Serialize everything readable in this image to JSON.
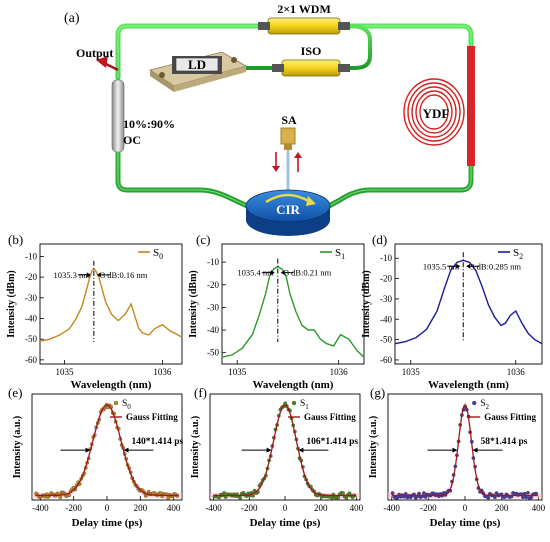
{
  "panel_a": {
    "label": "(a)",
    "wdm": "2×1 WDM",
    "output": "Output",
    "ld": "LD",
    "iso": "ISO",
    "oc_ratio": "10%:90%",
    "oc": "OC",
    "ydf": "YDF",
    "sa": "SA",
    "cir": "CIR"
  },
  "chart_data": [
    {
      "panel": "(b)",
      "type": "line",
      "color": "#c8861c",
      "legend_prefix": "S",
      "legend_sub": "0",
      "ylabel": "Intensity (dBm)",
      "xlabel": "Wavelength (nm)",
      "xlim": [
        1034.75,
        1036.2
      ],
      "ylim": [
        -62,
        -4
      ],
      "xticks": [
        "1035",
        "1036"
      ],
      "yticks": [
        "-10",
        "-20",
        "-30",
        "-40",
        "-50",
        "-60"
      ],
      "peak_label": "1035.3 nm",
      "bw_label": "3 dB:0.16 nm",
      "peak_x": 1035.3,
      "x": [
        1034.75,
        1034.85,
        1034.95,
        1035.05,
        1035.12,
        1035.18,
        1035.22,
        1035.26,
        1035.28,
        1035.3,
        1035.32,
        1035.35,
        1035.38,
        1035.42,
        1035.48,
        1035.55,
        1035.62,
        1035.68,
        1035.72,
        1035.76,
        1035.8,
        1035.86,
        1035.92,
        1036.0,
        1036.08,
        1036.2
      ],
      "y": [
        -51,
        -50,
        -48,
        -45,
        -40,
        -34,
        -27,
        -20,
        -17,
        -16,
        -17,
        -20,
        -25,
        -32,
        -38,
        -41,
        -38,
        -33,
        -39,
        -45,
        -47,
        -48,
        -45,
        -43,
        -46,
        -49
      ]
    },
    {
      "panel": "(c)",
      "type": "line",
      "color": "#2b9a2b",
      "legend_prefix": "S",
      "legend_sub": "1",
      "ylabel": "Intensity (dBm)",
      "xlabel": "Wavelength (nm)",
      "xlim": [
        1034.85,
        1036.25
      ],
      "ylim": [
        -55,
        -2
      ],
      "xticks": [
        "1035",
        "1036"
      ],
      "yticks": [
        "-10",
        "-20",
        "-30",
        "-40",
        "-50"
      ],
      "peak_label": "1035.4 nm",
      "bw_label": "3 dB:0.21 nm",
      "peak_x": 1035.4,
      "x": [
        1034.85,
        1034.95,
        1035.05,
        1035.15,
        1035.22,
        1035.28,
        1035.32,
        1035.36,
        1035.4,
        1035.44,
        1035.48,
        1035.52,
        1035.58,
        1035.64,
        1035.7,
        1035.76,
        1035.82,
        1035.88,
        1035.95,
        1036.02,
        1036.1,
        1036.18,
        1036.25
      ],
      "y": [
        -52,
        -51,
        -48,
        -42,
        -33,
        -24,
        -16,
        -13,
        -12,
        -13,
        -16,
        -24,
        -32,
        -38,
        -40,
        -40,
        -44,
        -46,
        -47,
        -42,
        -44,
        -49,
        -52
      ]
    },
    {
      "panel": "(d)",
      "type": "line",
      "color": "#1a1a9c",
      "legend_prefix": "S",
      "legend_sub": "2",
      "ylabel": "Intensity (dBm)",
      "xlabel": "Wavelength (nm)",
      "xlim": [
        1034.85,
        1036.25
      ],
      "ylim": [
        -62,
        -3
      ],
      "xticks": [
        "1035",
        "1036"
      ],
      "yticks": [
        "-10",
        "-20",
        "-30",
        "-40",
        "-50",
        "-60"
      ],
      "peak_label": "1035.5 nm",
      "bw_label": "3 dB:0.285 nm",
      "peak_x": 1035.5,
      "x": [
        1034.85,
        1034.95,
        1035.05,
        1035.15,
        1035.25,
        1035.32,
        1035.38,
        1035.44,
        1035.5,
        1035.56,
        1035.62,
        1035.68,
        1035.74,
        1035.8,
        1035.86,
        1035.9,
        1035.95,
        1036.0,
        1036.06,
        1036.12,
        1036.18,
        1036.25
      ],
      "y": [
        -52,
        -51,
        -49,
        -45,
        -36,
        -25,
        -16,
        -12,
        -11,
        -12,
        -16,
        -24,
        -33,
        -39,
        -43,
        -42,
        -38,
        -36,
        -42,
        -47,
        -50,
        -52
      ]
    },
    {
      "panel": "(e)",
      "type": "scatter",
      "color": "#c8861c",
      "legend_prefix": "S",
      "legend_sub": "0",
      "fit_label": "Gauss Fitting",
      "ylabel": "Intensity (a.u.)",
      "xlabel": "Delay time (ps)",
      "xlim": [
        -450,
        450
      ],
      "ylim": [
        -0.05,
        1.12
      ],
      "xticks": [
        "-400",
        "-200",
        "0",
        "200",
        "400"
      ],
      "width_label": "140*1.414 ps",
      "fwhm_ps": 198
    },
    {
      "panel": "(f)",
      "type": "scatter",
      "color": "#4e8a1e",
      "legend_prefix": "S",
      "legend_sub": "1",
      "fit_label": "Gauss Fitting",
      "ylabel": "Intensity (a.u.)",
      "xlabel": "Delay time (ps)",
      "xlim": [
        -420,
        420
      ],
      "ylim": [
        -0.05,
        1.12
      ],
      "xticks": [
        "-400",
        "-200",
        "0",
        "200",
        "400"
      ],
      "width_label": "106*1.414 ps",
      "fwhm_ps": 150
    },
    {
      "panel": "(g)",
      "type": "scatter",
      "color": "#4a3ca8",
      "legend_prefix": "S",
      "legend_sub": "2",
      "fit_label": "Gauss Fitting",
      "ylabel": "Intensity (a.u.)",
      "xlabel": "Delay time (ps)",
      "xlim": [
        -420,
        420
      ],
      "ylim": [
        -0.05,
        1.12
      ],
      "xticks": [
        "-400",
        "-200",
        "0",
        "200",
        "400"
      ],
      "width_label": "58*1.414 ps",
      "fwhm_ps": 82
    }
  ]
}
